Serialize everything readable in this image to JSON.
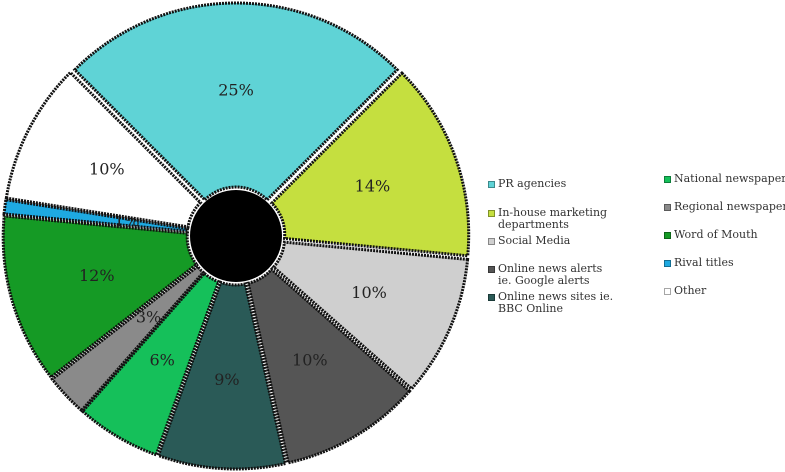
{
  "chart_data": {
    "type": "pie",
    "variant": "donut",
    "title": "",
    "legend_placement": "right",
    "slices": [
      {
        "label": "PR agencies",
        "value": 25,
        "display": "25%",
        "color": "#5fd3d6"
      },
      {
        "label": "In-house marketing departments",
        "value": 14,
        "display": "14%",
        "color": "#c5df3f"
      },
      {
        "label": "Social Media",
        "value": 10,
        "display": "10%",
        "color": "#cfcfcf"
      },
      {
        "label": "Online news alerts ie. Google alerts",
        "value": 10,
        "display": "10%",
        "color": "#555555"
      },
      {
        "label": "Online news sites ie. BBC Online",
        "value": 9,
        "display": "9%",
        "color": "#2a5a57"
      },
      {
        "label": "National newspapers",
        "value": 6,
        "display": "6%",
        "color": "#15c05a"
      },
      {
        "label": "Regional newspapers",
        "value": 3,
        "display": "3%",
        "color": "#8a8a8a"
      },
      {
        "label": "Word of Mouth",
        "value": 12,
        "display": "12%",
        "color": "#159a25"
      },
      {
        "label": "Rival titles",
        "value": 1,
        "display": "1%",
        "color": "#1ea9e1"
      },
      {
        "label": "Other",
        "value": 10,
        "display": "10%",
        "color": "#ffffff"
      }
    ]
  }
}
